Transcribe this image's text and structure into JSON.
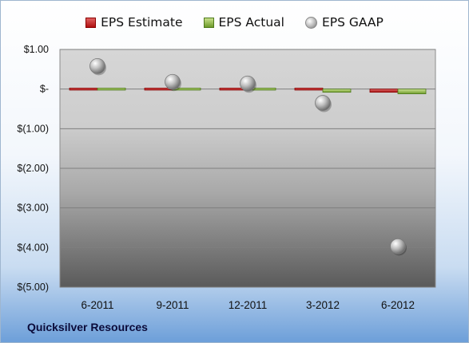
{
  "chart_data": {
    "type": "bar",
    "title": "",
    "xlabel": "",
    "ylabel": "",
    "categories": [
      "6-2011",
      "9-2011",
      "12-2011",
      "3-2012",
      "6-2012"
    ],
    "ylim": [
      -5,
      1
    ],
    "yticks": [
      1,
      0,
      -1,
      -2,
      -3,
      -4,
      -5
    ],
    "ytick_labels": [
      "$1.00",
      "$-",
      "$(1.00)",
      "$(2.00)",
      "$(3.00)",
      "$(4.00)",
      "$(5.00)"
    ],
    "grid": true,
    "legend_position": "top",
    "series": [
      {
        "name": "EPS Estimate",
        "type": "bar",
        "color": "#c0201f",
        "values": [
          -0.03,
          -0.02,
          -0.02,
          -0.05,
          -0.08
        ]
      },
      {
        "name": "EPS Actual",
        "type": "bar",
        "color": "#8fb44a",
        "values": [
          0.04,
          -0.02,
          0.0,
          -0.08,
          -0.12
        ]
      },
      {
        "name": "EPS GAAP",
        "type": "scatter",
        "color": "#a8a8a8",
        "values": [
          0.58,
          0.18,
          0.14,
          -0.35,
          -3.97
        ]
      }
    ]
  },
  "footer": {
    "company": "Quicksilver Resources"
  }
}
